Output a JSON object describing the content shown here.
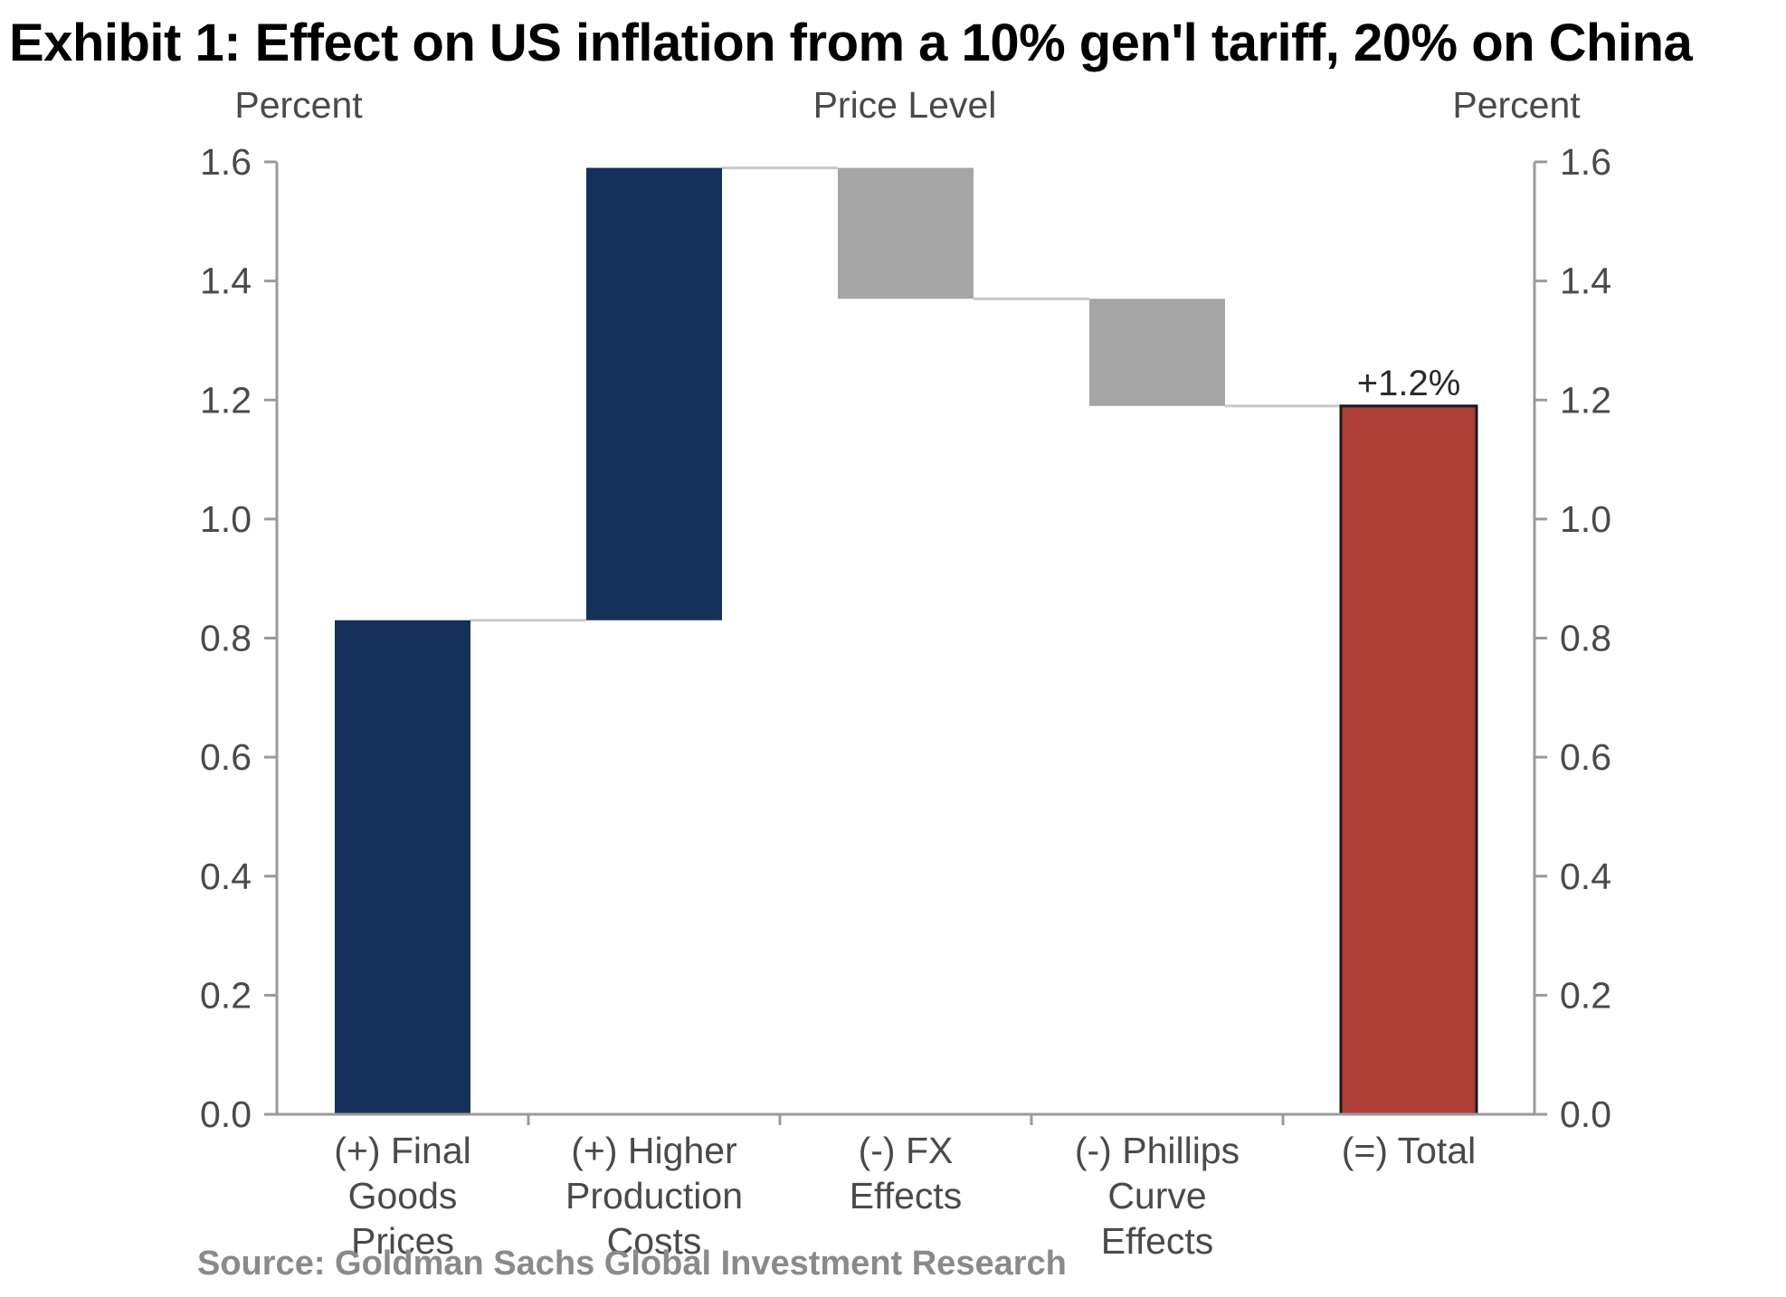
{
  "title": "Exhibit 1: Effect on US inflation from a 10% gen'l tariff, 20% on China",
  "source": "Source: Goldman Sachs Global Investment Research",
  "chart_data": {
    "type": "bar",
    "subtype": "waterfall",
    "header": "Price Level",
    "ylabel_left": "Percent",
    "ylabel_right": "Percent",
    "ylim": [
      0,
      1.6
    ],
    "yticks": [
      "0.0",
      "0.2",
      "0.4",
      "0.6",
      "0.8",
      "1.0",
      "1.2",
      "1.4",
      "1.6"
    ],
    "categories": [
      [
        "(+) Final",
        "Goods",
        "Prices"
      ],
      [
        "(+) Higher",
        "Production",
        "Costs"
      ],
      [
        "(-) FX",
        "Effects"
      ],
      [
        "(-) Phillips",
        "Curve",
        "Effects"
      ],
      [
        "(=) Total"
      ]
    ],
    "bars": [
      {
        "start": 0,
        "end": 0.83,
        "kind": "increase"
      },
      {
        "start": 0.83,
        "end": 1.59,
        "kind": "increase"
      },
      {
        "start": 1.59,
        "end": 1.37,
        "kind": "decrease"
      },
      {
        "start": 1.37,
        "end": 1.19,
        "kind": "decrease"
      },
      {
        "start": 0,
        "end": 1.19,
        "kind": "total"
      }
    ],
    "data_labels": [
      "",
      "",
      "",
      "",
      "+1.2%"
    ],
    "colors": {
      "increase": "#15305a",
      "decrease": "#a6a6a6",
      "total": "#ad3e38",
      "connector": "#c8c8c8",
      "axis": "#9a9a9a"
    },
    "grid": false
  }
}
